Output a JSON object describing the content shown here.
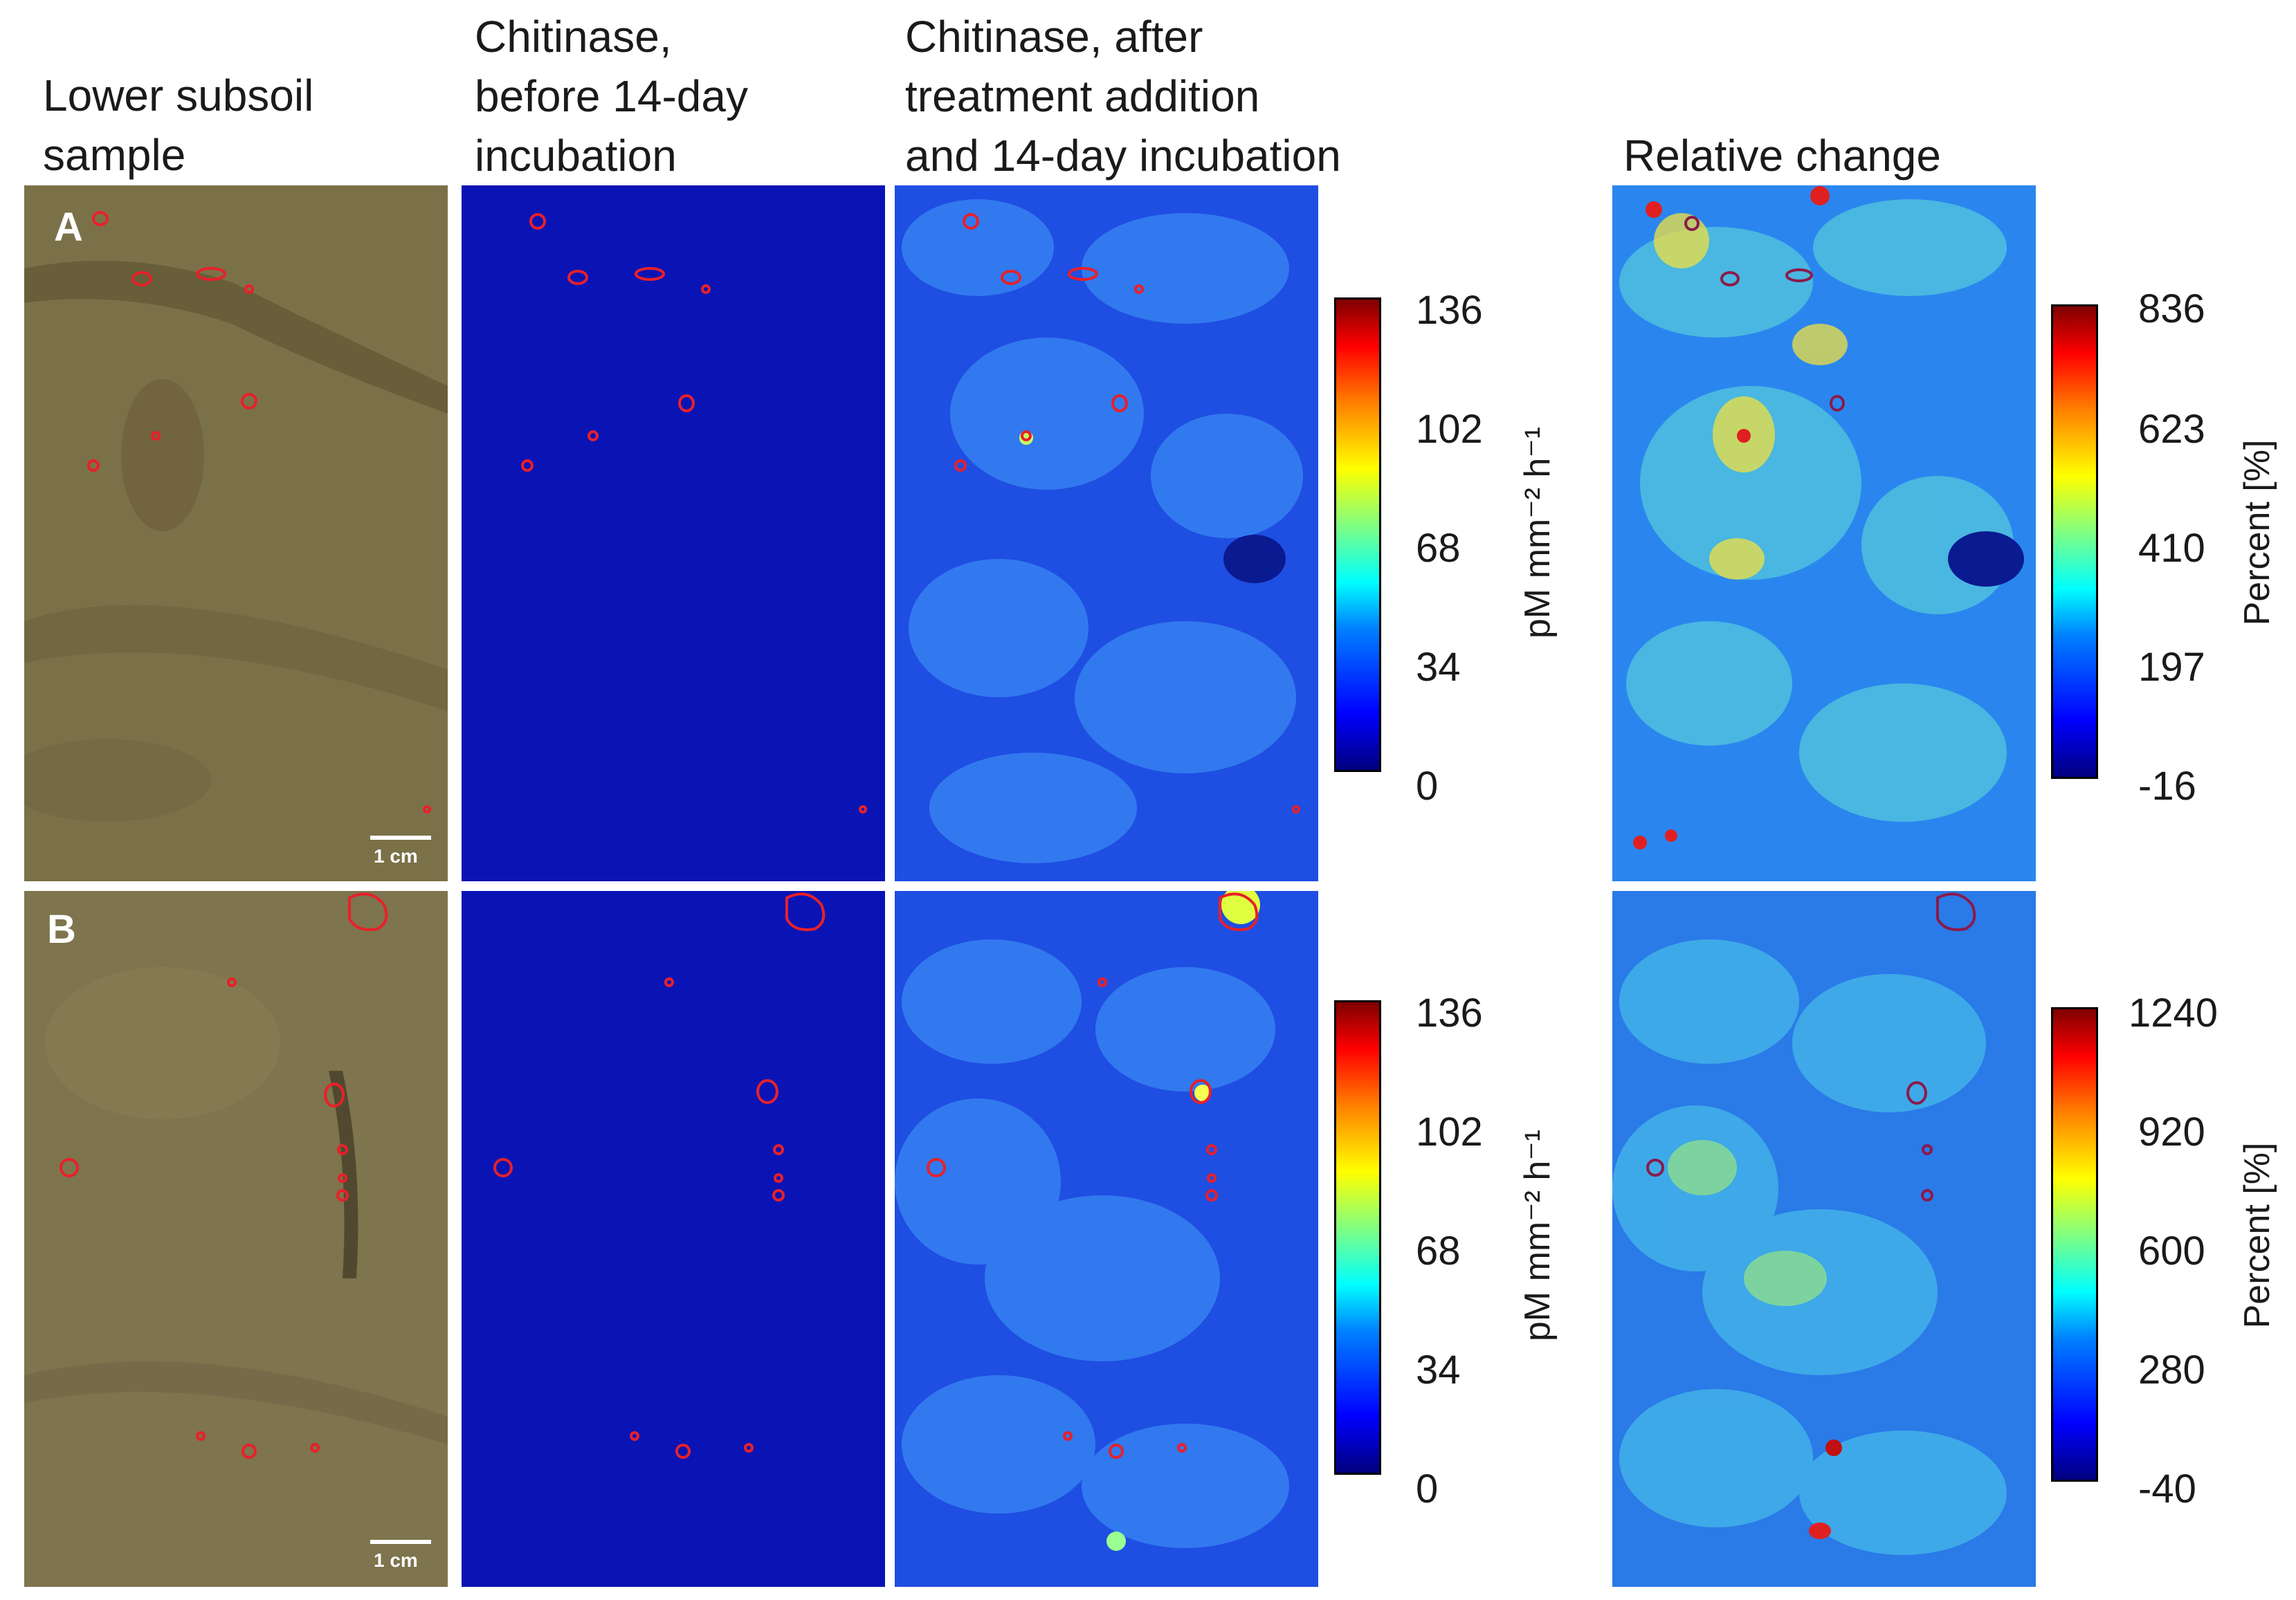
{
  "columns": [
    "Lower subsoil\nsample",
    "Chitinase,\nbefore 14-day\nincubation",
    "Chitinase, after\ntreatment addition\nand 14-day incubation",
    "Relative change"
  ],
  "rows": [
    {
      "label": "A",
      "scale_label": "1 cm",
      "colorbar_enzyme": {
        "ticks": [
          "136",
          "102",
          "68",
          "34",
          "0"
        ],
        "unit": "pM mm⁻² h⁻¹"
      },
      "colorbar_change": {
        "ticks": [
          "836",
          "623",
          "410",
          "197",
          "-16"
        ],
        "unit": "Percent [%]"
      }
    },
    {
      "label": "B",
      "scale_label": "1 cm",
      "colorbar_enzyme": {
        "ticks": [
          "136",
          "102",
          "68",
          "34",
          "0"
        ],
        "unit": "pM mm⁻² h⁻¹"
      },
      "colorbar_change": {
        "ticks": [
          "1240",
          "920",
          "600",
          "280",
          "-40"
        ],
        "unit": "Percent [%]"
      }
    }
  ],
  "colors": {
    "soil": "#7a7047",
    "before_map": "#0a14b4",
    "after_map": "#1e50e6",
    "change_map": "#2a8ff0",
    "outline": "#e8202a"
  }
}
